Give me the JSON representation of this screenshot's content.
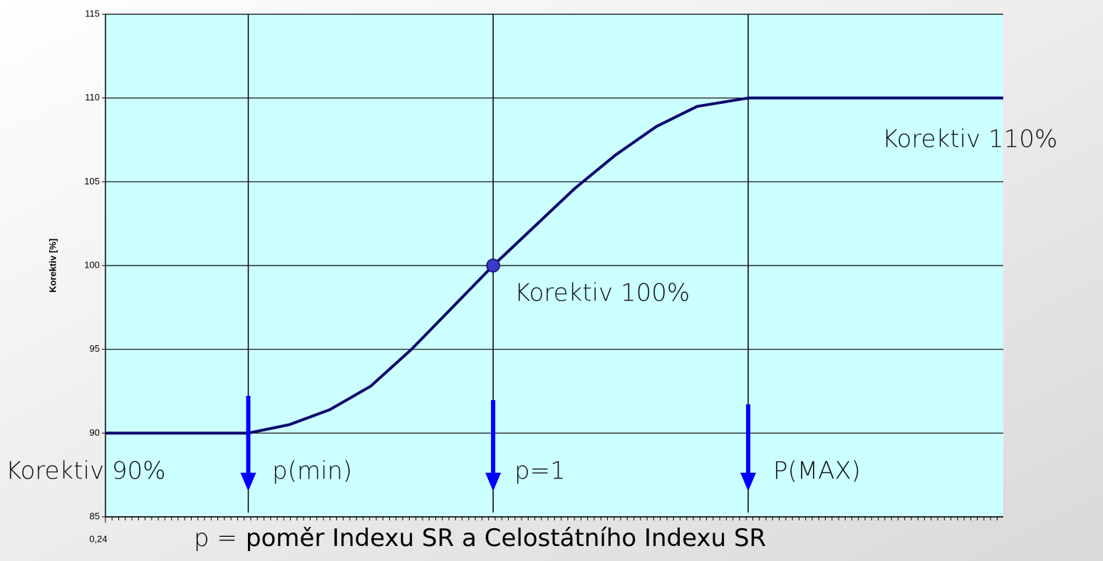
{
  "chart_data": {
    "type": "line",
    "y_label": "Korektiv [%]",
    "x_label_prefix": "p =",
    "x_label": "poměr Indexu SR a Celostátního Indexu SR",
    "x": [
      0.24,
      0.52,
      0.6,
      0.68,
      0.76,
      0.84,
      0.92,
      1.0,
      1.08,
      1.16,
      1.24,
      1.32,
      1.4,
      1.5,
      2.0
    ],
    "series": [
      {
        "color": "#0a0a6e",
        "values": [
          90,
          90,
          90.5,
          91.4,
          92.8,
          95,
          97.5,
          100,
          102.3,
          104.6,
          106.6,
          108.3,
          109.5,
          110,
          110
        ]
      }
    ],
    "point": {
      "x": 1.0,
      "y": 100,
      "color": "#3a3ac8"
    },
    "reference_lines": [
      0.52,
      1.0,
      1.5
    ],
    "arrow_color": "#0000ff",
    "xlim": [
      0.24,
      2.0
    ],
    "xticks": [
      {
        "value": 0.24,
        "label": "0,24"
      }
    ],
    "ylim": [
      85,
      115
    ],
    "yticks": [
      85,
      90,
      95,
      100,
      105,
      110,
      115
    ],
    "grid": true,
    "plot_background": "#ccffff",
    "annotations": [
      "Korektiv 110%",
      "Korektiv 100%",
      "Korektiv 90%",
      "p(min)",
      "p=1",
      "P(MAX)"
    ]
  }
}
